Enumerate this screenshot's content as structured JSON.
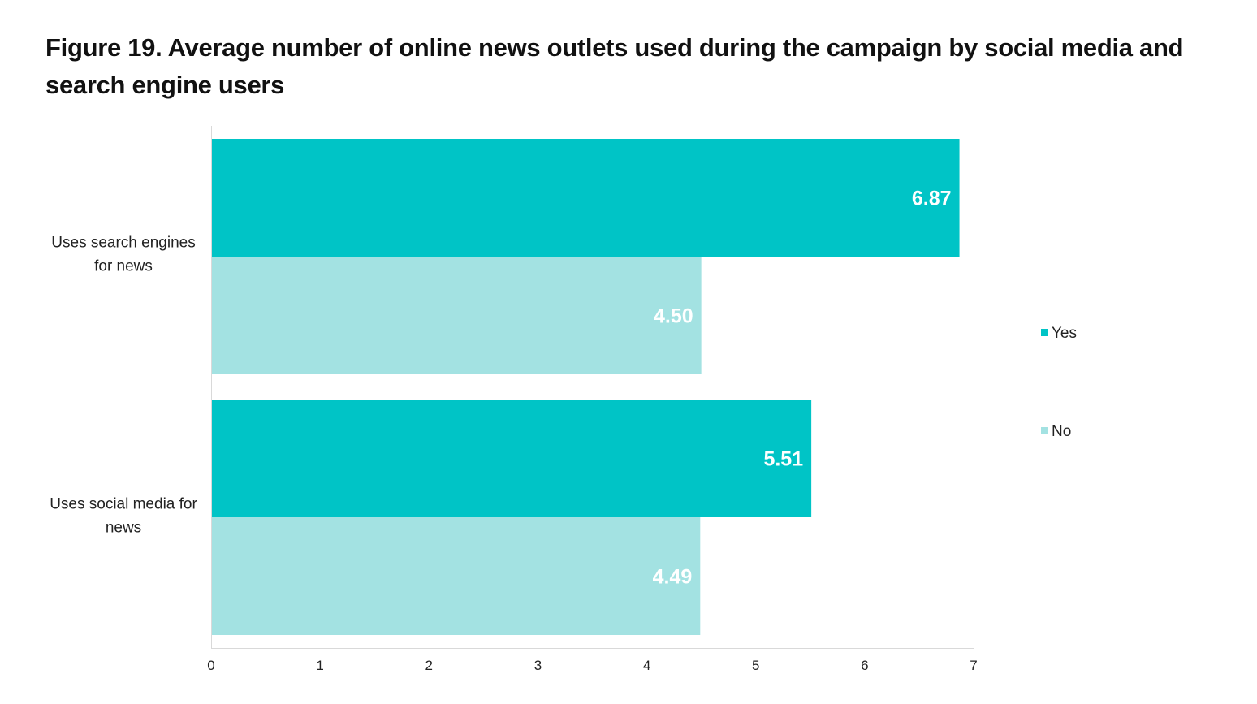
{
  "chart_data": {
    "type": "bar",
    "orientation": "horizontal",
    "title": "Figure 19. Average number of online news outlets used during the campaign by social media and search engine users",
    "categories": [
      "Uses search engines for news",
      "Uses social media for news"
    ],
    "category_lines": [
      [
        "Uses search engines",
        "for news"
      ],
      [
        "Uses social media for",
        "news"
      ]
    ],
    "series": [
      {
        "name": "Yes",
        "color": "#00C4C6",
        "values": [
          6.87,
          5.51
        ],
        "labels": [
          "6.87",
          "5.51"
        ]
      },
      {
        "name": "No",
        "color": "#A3E2E2",
        "values": [
          4.5,
          4.49
        ],
        "labels": [
          "4.50",
          "4.49"
        ]
      }
    ],
    "xlabel": "",
    "ylabel": "",
    "xlim": [
      0,
      7
    ],
    "xticks": [
      "0",
      "1",
      "2",
      "3",
      "4",
      "5",
      "6",
      "7"
    ],
    "grid": false,
    "legend_position": "right"
  }
}
